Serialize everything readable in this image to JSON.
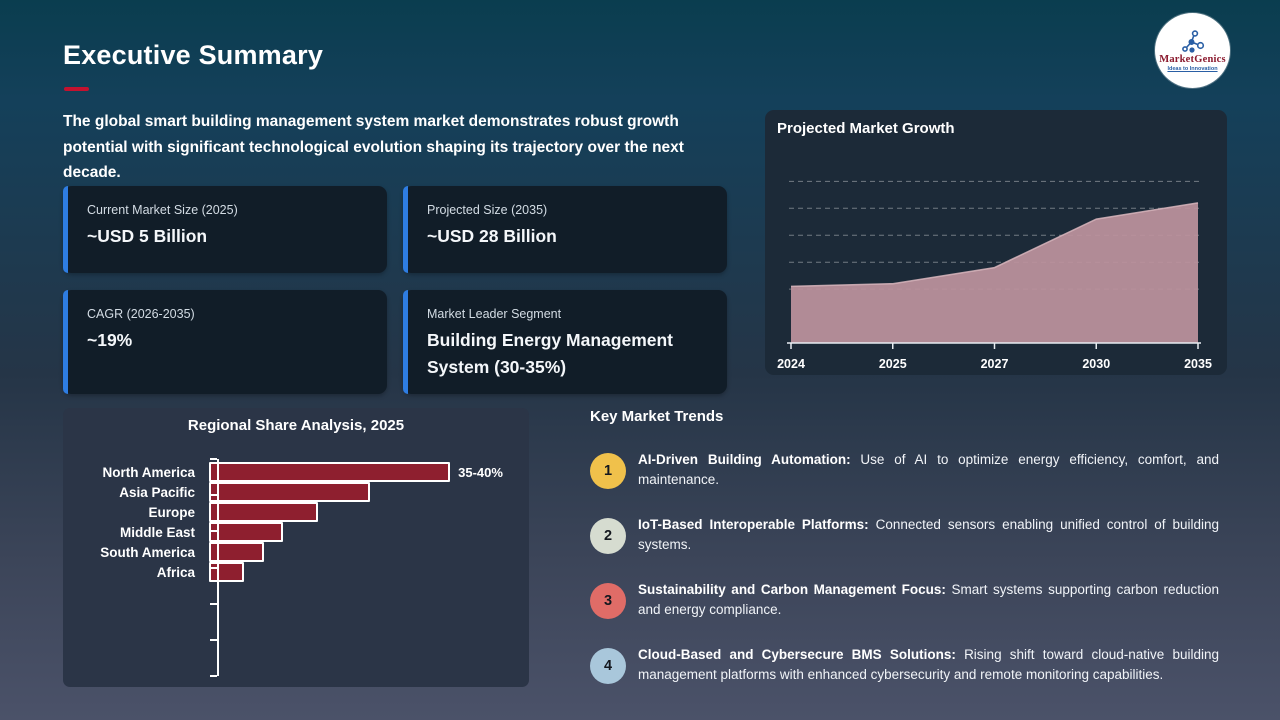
{
  "slide": {
    "title": "Executive Summary",
    "intro": "The global smart building management system market demonstrates robust growth potential with significant technological evolution shaping its trajectory over the next decade.",
    "accent_red": "#c4122f"
  },
  "logo": {
    "name": "MarketGenics",
    "tagline": "Ideas to Innovation",
    "brand_color": "#8b1a2e",
    "icon_color": "#2a5fa5"
  },
  "stats": [
    {
      "label": "Current Market Size (2025)",
      "value": "~USD 5 Billion"
    },
    {
      "label": "Projected Size (2035)",
      "value": "~USD 28 Billion"
    },
    {
      "label": "CAGR (2026-2035)",
      "value": "~19%"
    },
    {
      "label": "Market Leader Segment",
      "value": "Building Energy Management System (30-35%)"
    }
  ],
  "stat_card_accent": "#2e7de2",
  "trends": {
    "title": "Key Market Trends",
    "items": [
      {
        "num": "1",
        "color": "#f0c14b",
        "lead": "AI-Driven Building Automation:",
        "text": "Use of AI to optimize energy efficiency, comfort, and maintenance."
      },
      {
        "num": "2",
        "color": "#d6dcd0",
        "lead": "IoT-Based Interoperable Platforms:",
        "text": "Connected sensors enabling unified control of building systems."
      },
      {
        "num": "3",
        "color": "#e06c67",
        "lead": "Sustainability and Carbon Management Focus:",
        "text": "Smart systems supporting carbon reduction and energy compliance."
      },
      {
        "num": "4",
        "color": "#a9c7db",
        "lead": "Cloud-Based and Cybersecure BMS Solutions:",
        "text": "Rising shift toward cloud-native building management platforms with enhanced cybersecurity and remote monitoring capabilities."
      }
    ]
  },
  "chart_data": [
    {
      "type": "area",
      "title": "Projected Market Growth",
      "x": [
        "2024",
        "2025",
        "2027",
        "2030",
        "2035"
      ],
      "values": [
        10.5,
        11,
        14,
        23,
        26
      ],
      "ylim": [
        0,
        31
      ],
      "gridlines": [
        10,
        15,
        20,
        25,
        30
      ],
      "grid_style": "dashed",
      "legend": "none",
      "area_color": "#bb929c",
      "edge_color": "#d8b6bd",
      "axis_color": "#e8edf2",
      "note_axis": "y-axis unlabeled; values estimated from gridlines"
    },
    {
      "type": "bar",
      "orientation": "horizontal",
      "title": "Regional Share Analysis, 2025",
      "categories": [
        "North America",
        "Asia Pacific",
        "Europe",
        "Middle East",
        "South America",
        "Africa"
      ],
      "values": [
        37.5,
        25,
        17,
        11.5,
        8.5,
        5.5
      ],
      "xlim": [
        0,
        42
      ],
      "data_label": {
        "category": "North America",
        "text": "35-40%"
      },
      "bar_color": "#8e1f2f",
      "bar_border": "#ffffff",
      "note_axis": "only North America labeled (35-40%); other values estimated from bar lengths"
    }
  ]
}
